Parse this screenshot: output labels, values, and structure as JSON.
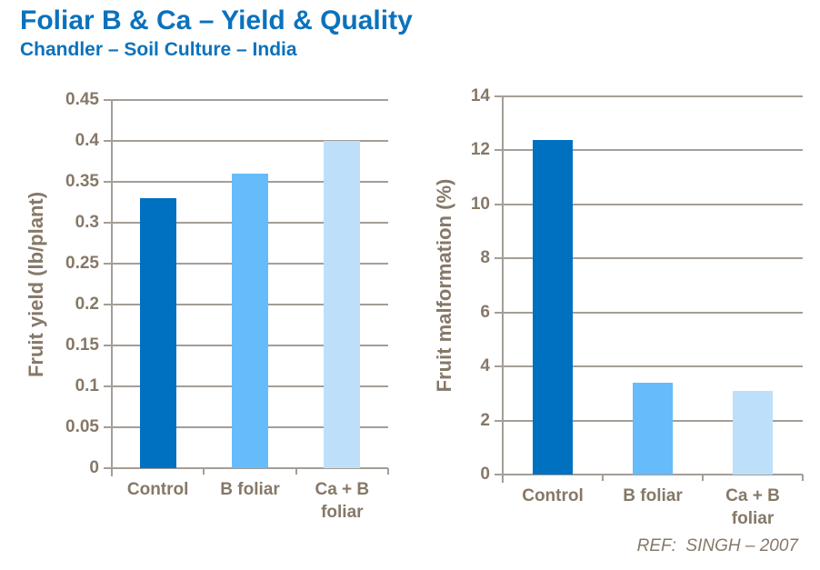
{
  "header": {
    "title": "Foliar B & Ca – Yield & Quality",
    "subtitle": "Chandler – Soil Culture – India"
  },
  "footer": {
    "reference": "REF:  SINGH – 2007"
  },
  "colors": {
    "heading": "#0b72bc",
    "axis_text": "#867868",
    "gridline": "#a49e97",
    "background": "#ffffff",
    "bar_palette": [
      "#0070c0",
      "#66bbfa",
      "#bddffa"
    ]
  },
  "chart_data": [
    {
      "type": "bar",
      "title": "",
      "categories": [
        "Control",
        "B foliar",
        "Ca + B foliar"
      ],
      "values": [
        0.33,
        0.36,
        0.4
      ],
      "xlabel": "",
      "ylabel": "Fruit yield (lb/plant)",
      "ylim": [
        0,
        0.45
      ],
      "yticks": [
        0,
        0.05,
        0.1,
        0.15,
        0.2,
        0.25,
        0.3,
        0.35,
        0.4,
        0.45
      ],
      "ytick_labels": [
        "0",
        "0.05",
        "0.1",
        "0.15",
        "0.2",
        "0.25",
        "0.3",
        "0.35",
        "0.4",
        "0.45"
      ],
      "grid": true,
      "legend": false
    },
    {
      "type": "bar",
      "title": "",
      "categories": [
        "Control",
        "B foliar",
        "Ca + B foliar"
      ],
      "values": [
        12.4,
        3.4,
        3.1
      ],
      "xlabel": "",
      "ylabel": "Fruit malformation (%)",
      "ylim": [
        0,
        14
      ],
      "yticks": [
        0,
        2,
        4,
        6,
        8,
        10,
        12,
        14
      ],
      "ytick_labels": [
        "0",
        "2",
        "4",
        "6",
        "8",
        "10",
        "12",
        "14"
      ],
      "grid": true,
      "legend": false
    }
  ]
}
